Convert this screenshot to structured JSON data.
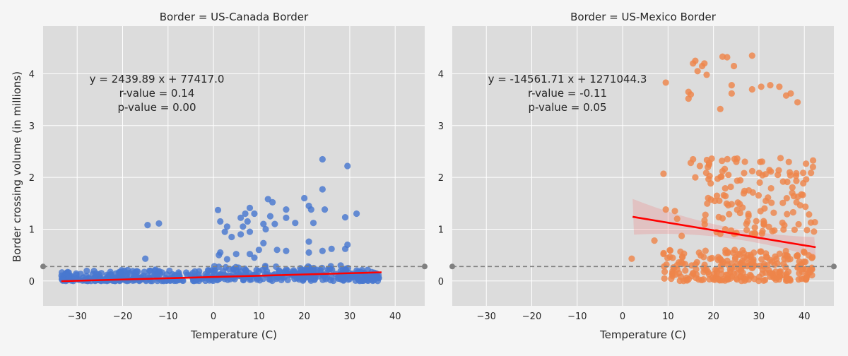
{
  "figure": {
    "ylabel": "Border crossing volume (in millions)",
    "background": "#f5f5f5",
    "plot_background": "#dcdcdc",
    "grid_color": "#ffffff",
    "mean_line_color": "#808080",
    "fit_line_color": "#ff0000"
  },
  "chart_data": [
    {
      "type": "scatter",
      "title": "Border = US-Canada Border",
      "xlabel": "Temperature (C)",
      "ylabel": "Border crossing volume (in millions)",
      "xlim": [
        -37.5,
        46.5
      ],
      "ylim": [
        -0.48,
        4.92
      ],
      "xticks": [
        -30,
        -20,
        -10,
        0,
        10,
        20,
        30,
        40
      ],
      "xtick_labels": [
        "−30",
        "−20",
        "−10",
        "0",
        "10",
        "20",
        "30",
        "40"
      ],
      "yticks": [
        0,
        1,
        2,
        3,
        4
      ],
      "ytick_labels": [
        "0",
        "1",
        "2",
        "3",
        "4"
      ],
      "grid": true,
      "color": "#4878d0",
      "annotation": [
        "y = 2439.89 x + 77417.0",
        "r-value = 0.14",
        "p-value = 0.00"
      ],
      "fit": {
        "slope": 0.00243989,
        "intercept": 0.0774,
        "x_range": [
          -33.5,
          37
        ],
        "ci": false
      },
      "reference_line": 0.28,
      "outliers": [
        [
          1,
          1.37
        ],
        [
          1.5,
          1.15
        ],
        [
          3,
          1.05
        ],
        [
          2.5,
          0.95
        ],
        [
          6,
          1.22
        ],
        [
          7,
          1.3
        ],
        [
          6.5,
          1.05
        ],
        [
          8,
          1.41
        ],
        [
          9,
          1.3
        ],
        [
          7.5,
          1.15
        ],
        [
          11,
          1.1
        ],
        [
          12,
          1.58
        ],
        [
          13,
          1.52
        ],
        [
          12.5,
          1.25
        ],
        [
          11.5,
          1.0
        ],
        [
          13.5,
          1.1
        ],
        [
          16,
          1.38
        ],
        [
          16,
          1.22
        ],
        [
          18,
          1.12
        ],
        [
          20,
          1.6
        ],
        [
          21,
          1.45
        ],
        [
          21.5,
          1.38
        ],
        [
          22,
          1.12
        ],
        [
          24,
          2.35
        ],
        [
          24,
          1.77
        ],
        [
          24.5,
          1.38
        ],
        [
          29.5,
          2.22
        ],
        [
          31.5,
          1.3
        ],
        [
          29,
          1.23
        ],
        [
          -14.5,
          1.08
        ],
        [
          -12,
          1.11
        ],
        [
          -15,
          0.43
        ],
        [
          1.5,
          0.55
        ],
        [
          1.2,
          0.5
        ],
        [
          6,
          0.9
        ],
        [
          4,
          0.85
        ],
        [
          8,
          0.95
        ],
        [
          10,
          0.6
        ],
        [
          8,
          0.52
        ],
        [
          5,
          0.52
        ],
        [
          11,
          0.73
        ],
        [
          14,
          0.6
        ],
        [
          16,
          0.58
        ],
        [
          21,
          0.76
        ],
        [
          21,
          0.55
        ],
        [
          24,
          0.58
        ],
        [
          26,
          0.62
        ],
        [
          29,
          0.62
        ],
        [
          29.5,
          0.7
        ],
        [
          28,
          0.3
        ],
        [
          25.5,
          0.24
        ],
        [
          3,
          0.42
        ],
        [
          9,
          0.45
        ]
      ],
      "cluster": {
        "x_range": [
          -33.5,
          37
        ],
        "y_range": [
          0,
          0.22
        ],
        "count": 480
      }
    },
    {
      "type": "scatter",
      "title": "Border = US-Mexico Border",
      "xlabel": "Temperature (C)",
      "xlim": [
        -37.5,
        46.5
      ],
      "ylim": [
        -0.48,
        4.92
      ],
      "xticks": [
        -30,
        -20,
        -10,
        0,
        10,
        20,
        30,
        40
      ],
      "xtick_labels": [
        "−30",
        "−20",
        "−10",
        "0",
        "10",
        "20",
        "30",
        "40"
      ],
      "yticks": [
        0,
        1,
        2,
        3,
        4
      ],
      "ytick_labels": [
        "0",
        "1",
        "2",
        "3",
        "4"
      ],
      "grid": true,
      "color": "#ee854a",
      "annotation": [
        "y = -14561.71 x + 1271044.3",
        "r-value = -0.11",
        "p-value = 0.05"
      ],
      "fit": {
        "slope": -0.01456171,
        "intercept": 1.2710443,
        "x_range": [
          2.2,
          42.5
        ],
        "ci": true
      },
      "reference_line": 0.28,
      "high_points": [
        [
          9.5,
          3.83
        ],
        [
          15.5,
          4.2
        ],
        [
          16,
          4.25
        ],
        [
          16.5,
          4.05
        ],
        [
          17.5,
          4.15
        ],
        [
          18.5,
          3.98
        ],
        [
          18,
          4.2
        ],
        [
          22,
          4.33
        ],
        [
          23,
          4.32
        ],
        [
          24.5,
          4.15
        ],
        [
          28.5,
          4.35
        ],
        [
          14.5,
          3.65
        ],
        [
          15,
          3.6
        ],
        [
          14.5,
          3.52
        ],
        [
          21.5,
          3.32
        ],
        [
          24,
          3.78
        ],
        [
          24,
          3.62
        ],
        [
          28.5,
          3.7
        ],
        [
          30.5,
          3.75
        ],
        [
          32.5,
          3.78
        ],
        [
          34.5,
          3.75
        ],
        [
          36,
          3.58
        ],
        [
          37,
          3.62
        ],
        [
          38.5,
          3.45
        ]
      ],
      "band": {
        "x_range": [
          9,
          42.5
        ],
        "y_range": [
          0.9,
          2.38
        ],
        "count": 135
      },
      "low_band": {
        "x_range": [
          9,
          42
        ],
        "y_range": [
          0,
          0.6
        ],
        "count": 250
      },
      "sparse_points": [
        [
          2,
          0.43
        ],
        [
          7,
          0.78
        ],
        [
          9,
          2.07
        ],
        [
          9.5,
          1.38
        ],
        [
          9,
          0.52
        ],
        [
          11.5,
          1.35
        ],
        [
          13,
          0.87
        ],
        [
          12,
          1.2
        ],
        [
          15,
          2.28
        ],
        [
          15.5,
          2.35
        ],
        [
          16,
          2.0
        ],
        [
          17,
          2.22
        ]
      ]
    }
  ]
}
